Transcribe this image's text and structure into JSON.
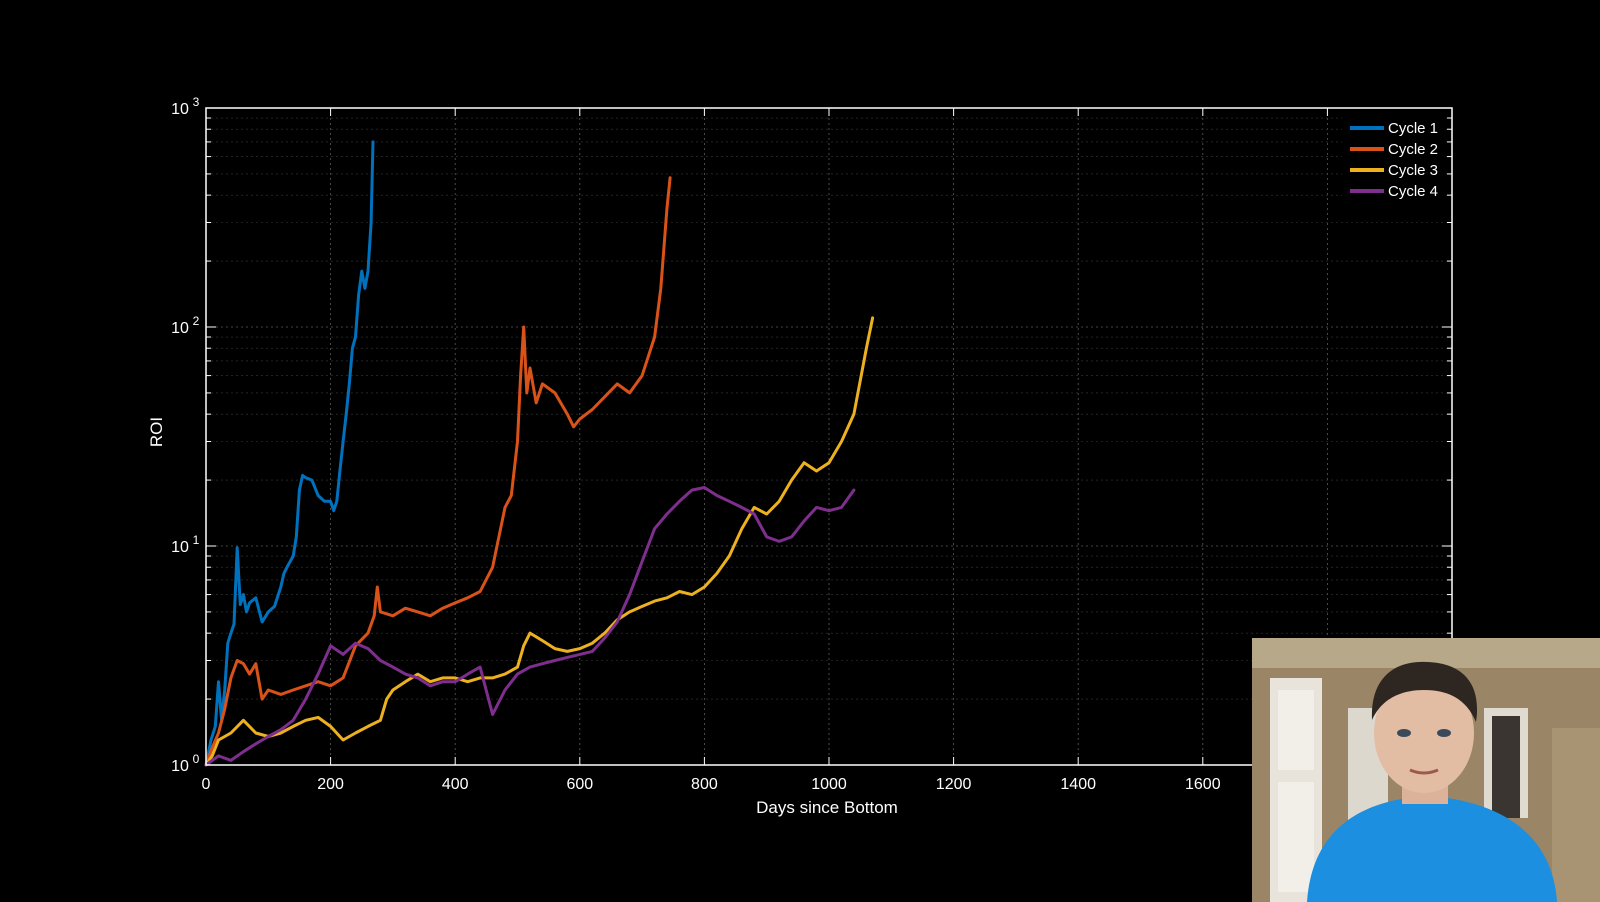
{
  "chart_data": {
    "type": "line",
    "title": "",
    "xlabel": "Days since Bottom",
    "ylabel": "ROI",
    "xlim": [
      0,
      2000
    ],
    "ylim": [
      1,
      1000
    ],
    "yscale": "log",
    "grid": true,
    "legend_position": "top-right",
    "background": "#000000",
    "x_ticks": [
      0,
      200,
      400,
      600,
      800,
      1000,
      1200,
      1400,
      1600
    ],
    "x_tick_labels": [
      "0",
      "200",
      "400",
      "600",
      "800",
      "1000",
      "1200",
      "1400",
      "1600"
    ],
    "y_ticks": [
      {
        "value": 1,
        "base": "10",
        "exp": "0"
      },
      {
        "value": 10,
        "base": "10",
        "exp": "1"
      },
      {
        "value": 100,
        "base": "10",
        "exp": "2"
      },
      {
        "value": 1000,
        "base": "10",
        "exp": "3"
      }
    ],
    "series": [
      {
        "name": "Cycle 1",
        "color": "#0072BD",
        "points": [
          [
            0,
            1
          ],
          [
            8,
            1.3
          ],
          [
            15,
            1.5
          ],
          [
            20,
            2.4
          ],
          [
            25,
            1.6
          ],
          [
            30,
            2.2
          ],
          [
            35,
            3.6
          ],
          [
            40,
            4
          ],
          [
            45,
            4.4
          ],
          [
            50,
            9.8
          ],
          [
            55,
            5.4
          ],
          [
            60,
            6
          ],
          [
            65,
            5
          ],
          [
            70,
            5.5
          ],
          [
            80,
            5.8
          ],
          [
            90,
            4.5
          ],
          [
            100,
            5
          ],
          [
            110,
            5.3
          ],
          [
            120,
            6.5
          ],
          [
            125,
            7.5
          ],
          [
            130,
            8
          ],
          [
            140,
            9
          ],
          [
            145,
            11
          ],
          [
            150,
            18
          ],
          [
            155,
            21
          ],
          [
            160,
            20.5
          ],
          [
            170,
            20
          ],
          [
            180,
            17
          ],
          [
            190,
            16
          ],
          [
            200,
            16
          ],
          [
            205,
            14.5
          ],
          [
            210,
            16
          ],
          [
            215,
            22
          ],
          [
            220,
            30
          ],
          [
            225,
            40
          ],
          [
            230,
            55
          ],
          [
            235,
            80
          ],
          [
            240,
            90
          ],
          [
            245,
            140
          ],
          [
            250,
            180
          ],
          [
            255,
            150
          ],
          [
            260,
            180
          ],
          [
            265,
            300
          ],
          [
            268,
            700
          ]
        ]
      },
      {
        "name": "Cycle 2",
        "color": "#D95319",
        "points": [
          [
            0,
            1
          ],
          [
            10,
            1.2
          ],
          [
            20,
            1.4
          ],
          [
            30,
            1.8
          ],
          [
            40,
            2.5
          ],
          [
            50,
            3
          ],
          [
            60,
            2.9
          ],
          [
            70,
            2.6
          ],
          [
            80,
            2.9
          ],
          [
            90,
            2
          ],
          [
            100,
            2.2
          ],
          [
            120,
            2.1
          ],
          [
            140,
            2.2
          ],
          [
            160,
            2.3
          ],
          [
            180,
            2.4
          ],
          [
            200,
            2.3
          ],
          [
            220,
            2.5
          ],
          [
            240,
            3.5
          ],
          [
            260,
            4
          ],
          [
            270,
            4.8
          ],
          [
            275,
            6.5
          ],
          [
            280,
            5
          ],
          [
            300,
            4.8
          ],
          [
            320,
            5.2
          ],
          [
            340,
            5
          ],
          [
            360,
            4.8
          ],
          [
            380,
            5.2
          ],
          [
            400,
            5.5
          ],
          [
            420,
            5.8
          ],
          [
            440,
            6.2
          ],
          [
            460,
            8
          ],
          [
            480,
            15
          ],
          [
            490,
            17
          ],
          [
            500,
            30
          ],
          [
            505,
            60
          ],
          [
            510,
            100
          ],
          [
            515,
            50
          ],
          [
            520,
            65
          ],
          [
            530,
            45
          ],
          [
            540,
            55
          ],
          [
            560,
            50
          ],
          [
            580,
            40
          ],
          [
            590,
            35
          ],
          [
            600,
            38
          ],
          [
            620,
            42
          ],
          [
            640,
            48
          ],
          [
            660,
            55
          ],
          [
            680,
            50
          ],
          [
            700,
            60
          ],
          [
            720,
            90
          ],
          [
            730,
            150
          ],
          [
            740,
            350
          ],
          [
            745,
            480
          ]
        ]
      },
      {
        "name": "Cycle 3",
        "color": "#EDB120",
        "points": [
          [
            0,
            1
          ],
          [
            10,
            1.1
          ],
          [
            20,
            1.3
          ],
          [
            40,
            1.4
          ],
          [
            60,
            1.6
          ],
          [
            80,
            1.4
          ],
          [
            100,
            1.35
          ],
          [
            120,
            1.4
          ],
          [
            140,
            1.5
          ],
          [
            160,
            1.6
          ],
          [
            180,
            1.65
          ],
          [
            200,
            1.5
          ],
          [
            220,
            1.3
          ],
          [
            240,
            1.4
          ],
          [
            260,
            1.5
          ],
          [
            280,
            1.6
          ],
          [
            290,
            2
          ],
          [
            300,
            2.2
          ],
          [
            320,
            2.4
          ],
          [
            340,
            2.6
          ],
          [
            360,
            2.4
          ],
          [
            380,
            2.5
          ],
          [
            400,
            2.5
          ],
          [
            420,
            2.4
          ],
          [
            440,
            2.5
          ],
          [
            460,
            2.5
          ],
          [
            480,
            2.6
          ],
          [
            500,
            2.8
          ],
          [
            510,
            3.5
          ],
          [
            520,
            4
          ],
          [
            540,
            3.7
          ],
          [
            560,
            3.4
          ],
          [
            580,
            3.3
          ],
          [
            600,
            3.4
          ],
          [
            620,
            3.6
          ],
          [
            640,
            4
          ],
          [
            660,
            4.6
          ],
          [
            680,
            5
          ],
          [
            700,
            5.3
          ],
          [
            720,
            5.6
          ],
          [
            740,
            5.8
          ],
          [
            760,
            6.2
          ],
          [
            780,
            6
          ],
          [
            800,
            6.5
          ],
          [
            820,
            7.5
          ],
          [
            840,
            9
          ],
          [
            860,
            12
          ],
          [
            880,
            15
          ],
          [
            900,
            14
          ],
          [
            920,
            16
          ],
          [
            940,
            20
          ],
          [
            960,
            24
          ],
          [
            980,
            22
          ],
          [
            1000,
            24
          ],
          [
            1020,
            30
          ],
          [
            1040,
            40
          ],
          [
            1060,
            80
          ],
          [
            1070,
            110
          ]
        ]
      },
      {
        "name": "Cycle 4",
        "color": "#7E2F8E",
        "points": [
          [
            0,
            1
          ],
          [
            20,
            1.1
          ],
          [
            40,
            1.05
          ],
          [
            60,
            1.15
          ],
          [
            80,
            1.25
          ],
          [
            100,
            1.35
          ],
          [
            120,
            1.45
          ],
          [
            140,
            1.6
          ],
          [
            160,
            2
          ],
          [
            180,
            2.6
          ],
          [
            200,
            3.5
          ],
          [
            220,
            3.2
          ],
          [
            240,
            3.6
          ],
          [
            260,
            3.4
          ],
          [
            280,
            3
          ],
          [
            300,
            2.8
          ],
          [
            320,
            2.6
          ],
          [
            340,
            2.5
          ],
          [
            360,
            2.3
          ],
          [
            380,
            2.4
          ],
          [
            400,
            2.4
          ],
          [
            420,
            2.6
          ],
          [
            440,
            2.8
          ],
          [
            460,
            1.7
          ],
          [
            480,
            2.2
          ],
          [
            500,
            2.6
          ],
          [
            520,
            2.8
          ],
          [
            540,
            2.9
          ],
          [
            560,
            3
          ],
          [
            580,
            3.1
          ],
          [
            600,
            3.2
          ],
          [
            620,
            3.3
          ],
          [
            640,
            3.8
          ],
          [
            660,
            4.5
          ],
          [
            680,
            6
          ],
          [
            700,
            8.5
          ],
          [
            720,
            12
          ],
          [
            740,
            14
          ],
          [
            760,
            16
          ],
          [
            780,
            18
          ],
          [
            800,
            18.5
          ],
          [
            820,
            17
          ],
          [
            840,
            16
          ],
          [
            860,
            15
          ],
          [
            880,
            14
          ],
          [
            900,
            11
          ],
          [
            920,
            10.5
          ],
          [
            940,
            11
          ],
          [
            960,
            13
          ],
          [
            980,
            15
          ],
          [
            1000,
            14.5
          ],
          [
            1020,
            15
          ],
          [
            1040,
            18
          ]
        ]
      }
    ]
  }
}
